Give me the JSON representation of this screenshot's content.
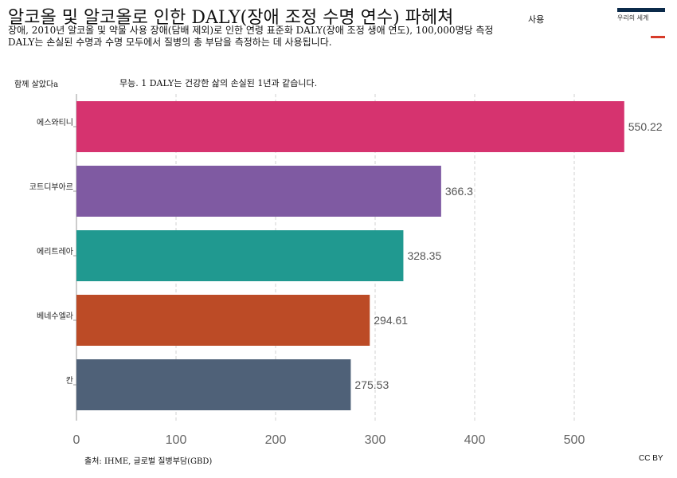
{
  "header": {
    "title": "알코올 및 알코올로 인한 DALY(장애 조정 수명 연수) 파헤쳐",
    "title_tail": "사용",
    "subtitle_line1": "장애, 2010년 알코올 및 약물 사용 장애(담배 제외)로 인한 연령 표준화 DALY(장애 조정 생애 연도), 100,000명당 측정",
    "subtitle_line2": "DALY는 손실된 수명과 수명 모두에서 질병의 총 부담을 측정하는 데 사용됩니다."
  },
  "logo": {
    "text": "우리의 세계",
    "bar_color": "#0b2a4a",
    "accent_color": "#d73b2a"
  },
  "legend_label": "함께 살았다a",
  "annotation": "무능. 1 DALY는 건강한 삶의 손실된 1년과 같습니다.",
  "footer": {
    "source": "출처: IHME, 글로벌 질병부담(GBD)",
    "license": "CC BY"
  },
  "chart_data": {
    "type": "bar",
    "orientation": "horizontal",
    "title": "알코올 및 알코올로 인한 DALY(장애 조정 수명 연수) 파헤쳐",
    "categories": [
      "에스와티니",
      "코트디부아르",
      "에리트레아",
      "베네수엘라",
      "칸"
    ],
    "values": [
      550.22,
      366.3,
      328.35,
      294.61,
      275.53
    ],
    "value_labels": [
      "550.22",
      "366.3",
      "328.35",
      "294.61",
      "275.53"
    ],
    "colors": [
      "#d6336f",
      "#7f5aa2",
      "#209990",
      "#bc4b26",
      "#4f6178"
    ],
    "x_ticks": [
      0,
      100,
      200,
      300,
      400,
      500
    ],
    "xlim": [
      0,
      600
    ],
    "grid": "vertical-dashed",
    "xlabel": "",
    "ylabel": ""
  }
}
